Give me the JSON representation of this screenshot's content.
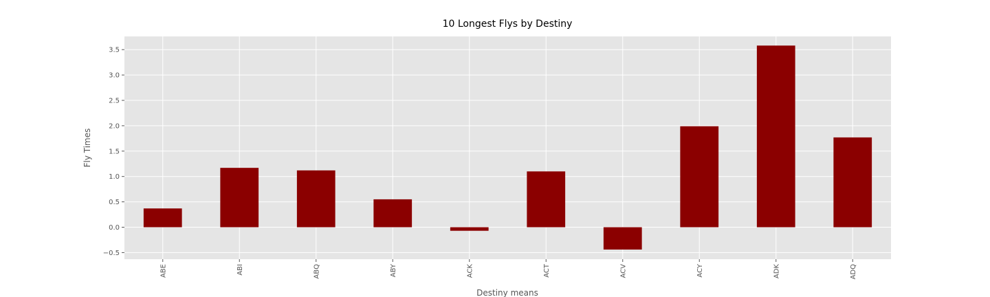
{
  "chart_data": {
    "type": "bar",
    "title": "10 Longest Flys by Destiny",
    "xlabel": "Destiny means",
    "ylabel": "Fly Times",
    "categories": [
      "ABE",
      "ABI",
      "ABQ",
      "ABY",
      "ACK",
      "ACT",
      "ACV",
      "ACY",
      "ADK",
      "ADQ"
    ],
    "values": [
      0.37,
      1.17,
      1.12,
      0.55,
      -0.07,
      1.1,
      -0.44,
      1.99,
      3.58,
      1.77
    ],
    "ylim": [
      -0.63,
      3.76
    ],
    "yticks": [
      -0.5,
      0.0,
      0.5,
      1.0,
      1.5,
      2.0,
      2.5,
      3.0,
      3.5
    ],
    "ytick_labels": [
      "−0.5",
      "0.0",
      "0.5",
      "1.0",
      "1.5",
      "2.0",
      "2.5",
      "3.0",
      "3.5"
    ],
    "grid": true,
    "legend": "none",
    "colors": {
      "bar": "#8b0000",
      "plot_background": "#e5e5e5",
      "grid": "#ffffff",
      "tick_text": "#555555"
    }
  }
}
